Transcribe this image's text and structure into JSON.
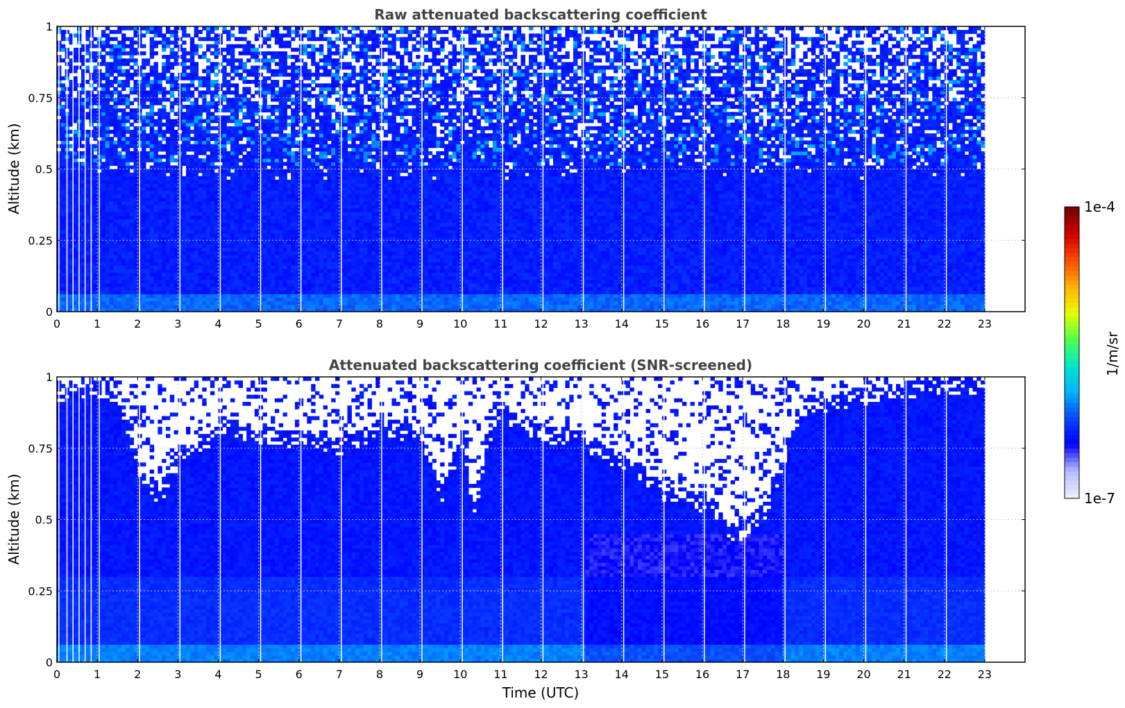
{
  "colors": {
    "background": "#ffffff",
    "grid": "#c8c8c8",
    "title": "#444444",
    "colormap": [
      "#ecebff",
      "#b4b8ff",
      "#0000ff",
      "#0a46ff",
      "#00b4ff",
      "#00e6c8",
      "#50ff50",
      "#e6ff00",
      "#ffb400",
      "#ff5000",
      "#d20000",
      "#780000"
    ]
  },
  "chart_data": [
    {
      "type": "heatmap",
      "title": "Raw attenuated backscattering coefficient",
      "xlabel": "",
      "ylabel": "Altitude (km)",
      "xlim": [
        0,
        24
      ],
      "ylim": [
        0,
        1
      ],
      "xticks": [
        "0",
        "1",
        "2",
        "3",
        "4",
        "5",
        "6",
        "7",
        "8",
        "9",
        "10",
        "11",
        "12",
        "13",
        "14",
        "15",
        "16",
        "17",
        "18",
        "19",
        "20",
        "21",
        "22",
        "23"
      ],
      "yticks": [
        "0",
        "0.25",
        "0.5",
        "0.75",
        "1"
      ],
      "grid": true,
      "data_end_time": 23,
      "screened": false,
      "log10_value_range": [
        -7,
        -4
      ]
    },
    {
      "type": "heatmap",
      "title": "Attenuated backscattering coefficient (SNR-screened)",
      "xlabel": "Time (UTC)",
      "ylabel": "Altitude (km)",
      "xlim": [
        0,
        24
      ],
      "ylim": [
        0,
        1
      ],
      "xticks": [
        "0",
        "1",
        "2",
        "3",
        "4",
        "5",
        "6",
        "7",
        "8",
        "9",
        "10",
        "11",
        "12",
        "13",
        "14",
        "15",
        "16",
        "17",
        "18",
        "19",
        "20",
        "21",
        "22",
        "23"
      ],
      "yticks": [
        "0",
        "0.25",
        "0.5",
        "0.75",
        "1"
      ],
      "grid": true,
      "data_end_time": 23,
      "screened": true,
      "log10_value_range": [
        -7,
        -4
      ]
    }
  ],
  "colorbar": {
    "max_label": "1e-4",
    "min_label": "1e-7",
    "unit_label": "1/m/sr"
  }
}
